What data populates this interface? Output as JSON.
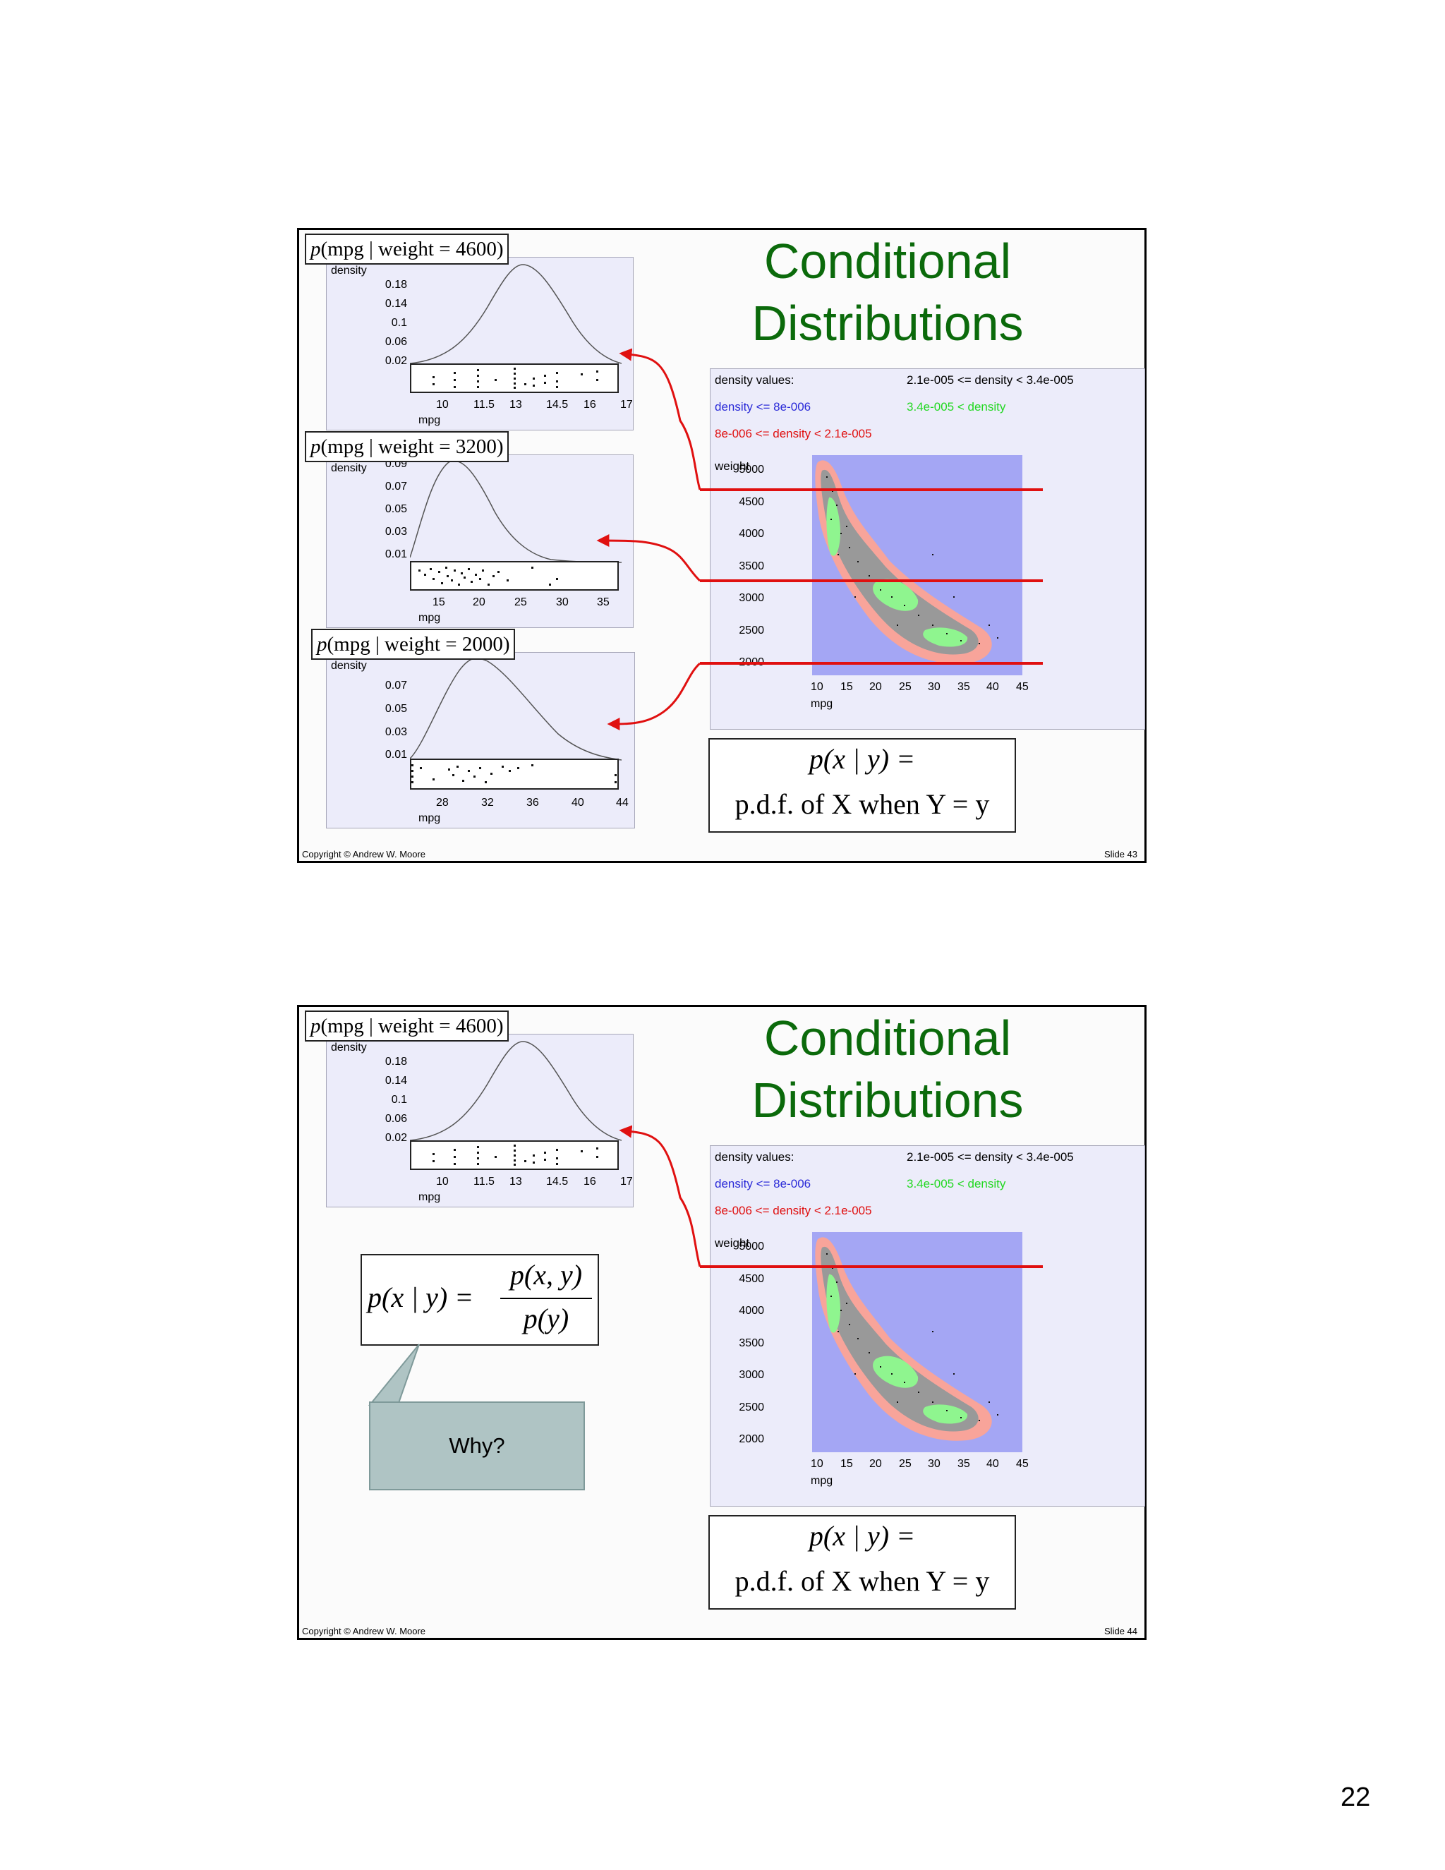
{
  "page_number": "22",
  "slide43": {
    "title_line1": "Conditional",
    "title_line2": "Distributions",
    "copyright": "Copyright © Andrew W. Moore",
    "slide_label": "Slide 43",
    "panels": [
      {
        "label_weight": "4600",
        "ylabel": "density",
        "yticks": [
          "0.18",
          "0.14",
          "0.1",
          "0.06",
          "0.02"
        ],
        "xticks": [
          "10",
          "11.5",
          "13",
          "14.5",
          "16",
          "17"
        ],
        "xlabel": "mpg"
      },
      {
        "label_weight": "3200",
        "ylabel": "density",
        "yticks": [
          "0.09",
          "0.07",
          "0.05",
          "0.03",
          "0.01"
        ],
        "xticks": [
          "15",
          "20",
          "25",
          "30",
          "35"
        ],
        "xlabel": "mpg"
      },
      {
        "label_weight": "2000",
        "ylabel": "density",
        "yticks": [
          "0.07",
          "0.05",
          "0.03",
          "0.01"
        ],
        "xticks": [
          "28",
          "32",
          "36",
          "40",
          "44"
        ],
        "xlabel": "mpg"
      }
    ]
  },
  "slide44": {
    "title_line1": "Conditional",
    "title_line2": "Distributions",
    "copyright": "Copyright © Andrew W. Moore",
    "slide_label": "Slide 44",
    "panel": {
      "label_weight": "4600",
      "ylabel": "density",
      "yticks": [
        "0.18",
        "0.14",
        "0.1",
        "0.06",
        "0.02"
      ],
      "xticks": [
        "10",
        "11.5",
        "13",
        "14.5",
        "16",
        "17"
      ],
      "xlabel": "mpg"
    },
    "bayes_formula": {
      "lhs": "p(x | y) =",
      "num": "p(x, y)",
      "den": "p(y)"
    },
    "callout_text": "Why?"
  },
  "density_plot": {
    "header": "density values:",
    "legend_low": "density <= 8e-006",
    "legend_mid": "8e-006 <= density < 2.1e-005",
    "legend_high": "2.1e-005 <= density < 3.4e-005",
    "legend_top": "3.4e-005 < density",
    "ylabel": "weight",
    "yticks": [
      "5000",
      "4500",
      "4000",
      "3500",
      "3000",
      "2500",
      "2000"
    ],
    "xticks": [
      "10",
      "15",
      "20",
      "25",
      "30",
      "35",
      "40",
      "45"
    ],
    "xlabel": "mpg",
    "colors": {
      "low": "#2b2bd8",
      "mid": "#e01010",
      "high": "#222222",
      "top": "#22d822",
      "bg": "#a4a6f4"
    }
  },
  "cond_formula": {
    "line1": "p(x | y) =",
    "line2": "p.d.f. of X when Y = y"
  }
}
